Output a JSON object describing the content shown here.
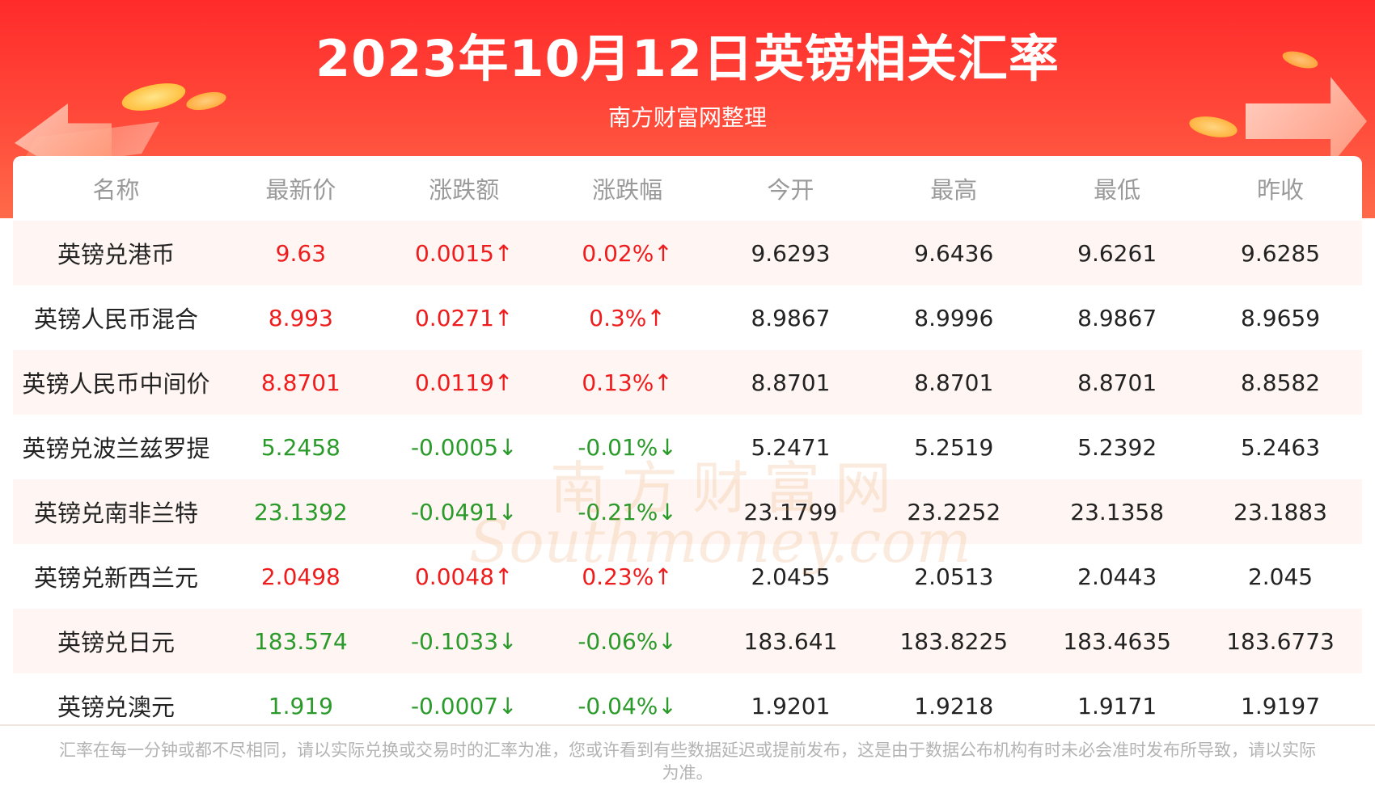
{
  "header": {
    "title": "2023年10月12日英镑相关汇率",
    "subtitle": "南方财富网整理"
  },
  "table": {
    "columns": [
      "名称",
      "最新价",
      "涨跌额",
      "涨跌幅",
      "今开",
      "最高",
      "最低",
      "昨收"
    ],
    "rows": [
      {
        "name": "英镑兑港币",
        "latest": "9.63",
        "change": "0.0015↑",
        "pct": "0.02%↑",
        "open": "9.6293",
        "high": "9.6436",
        "low": "9.6261",
        "prev_close": "9.6285",
        "direction": "up"
      },
      {
        "name": "英镑人民币混合",
        "latest": "8.993",
        "change": "0.0271↑",
        "pct": "0.3%↑",
        "open": "8.9867",
        "high": "8.9996",
        "low": "8.9867",
        "prev_close": "8.9659",
        "direction": "up"
      },
      {
        "name": "英镑人民币中间价",
        "latest": "8.8701",
        "change": "0.0119↑",
        "pct": "0.13%↑",
        "open": "8.8701",
        "high": "8.8701",
        "low": "8.8701",
        "prev_close": "8.8582",
        "direction": "up"
      },
      {
        "name": "英镑兑波兰兹罗提",
        "latest": "5.2458",
        "change": "-0.0005↓",
        "pct": "-0.01%↓",
        "open": "5.2471",
        "high": "5.2519",
        "low": "5.2392",
        "prev_close": "5.2463",
        "direction": "down"
      },
      {
        "name": "英镑兑南非兰特",
        "latest": "23.1392",
        "change": "-0.0491↓",
        "pct": "-0.21%↓",
        "open": "23.1799",
        "high": "23.2252",
        "low": "23.1358",
        "prev_close": "23.1883",
        "direction": "down"
      },
      {
        "name": "英镑兑新西兰元",
        "latest": "2.0498",
        "change": "0.0048↑",
        "pct": "0.23%↑",
        "open": "2.0455",
        "high": "2.0513",
        "low": "2.0443",
        "prev_close": "2.045",
        "direction": "up"
      },
      {
        "name": "英镑兑日元",
        "latest": "183.574",
        "change": "-0.1033↓",
        "pct": "-0.06%↓",
        "open": "183.641",
        "high": "183.8225",
        "low": "183.4635",
        "prev_close": "183.6773",
        "direction": "down"
      },
      {
        "name": "英镑兑澳元",
        "latest": "1.919",
        "change": "-0.0007↓",
        "pct": "-0.04%↓",
        "open": "1.9201",
        "high": "1.9218",
        "low": "1.9171",
        "prev_close": "1.9197",
        "direction": "down"
      }
    ]
  },
  "watermark": {
    "cn": "南方财富网",
    "en": "Southmoney.com"
  },
  "footer": {
    "note": "汇率在每一分钟或都不尽相同，请以实际兑换或交易时的汇率为准，您或许看到有些数据延迟或提前发布，这是由于数据公布机构有时未必会准时发布所导致，请以实际为准。"
  },
  "colors": {
    "banner": "#ff2b2b",
    "up": "#ee1c1c",
    "down": "#2a9a2a",
    "header_text": "#9a9a9a",
    "alt_row": "#fff6f3"
  }
}
